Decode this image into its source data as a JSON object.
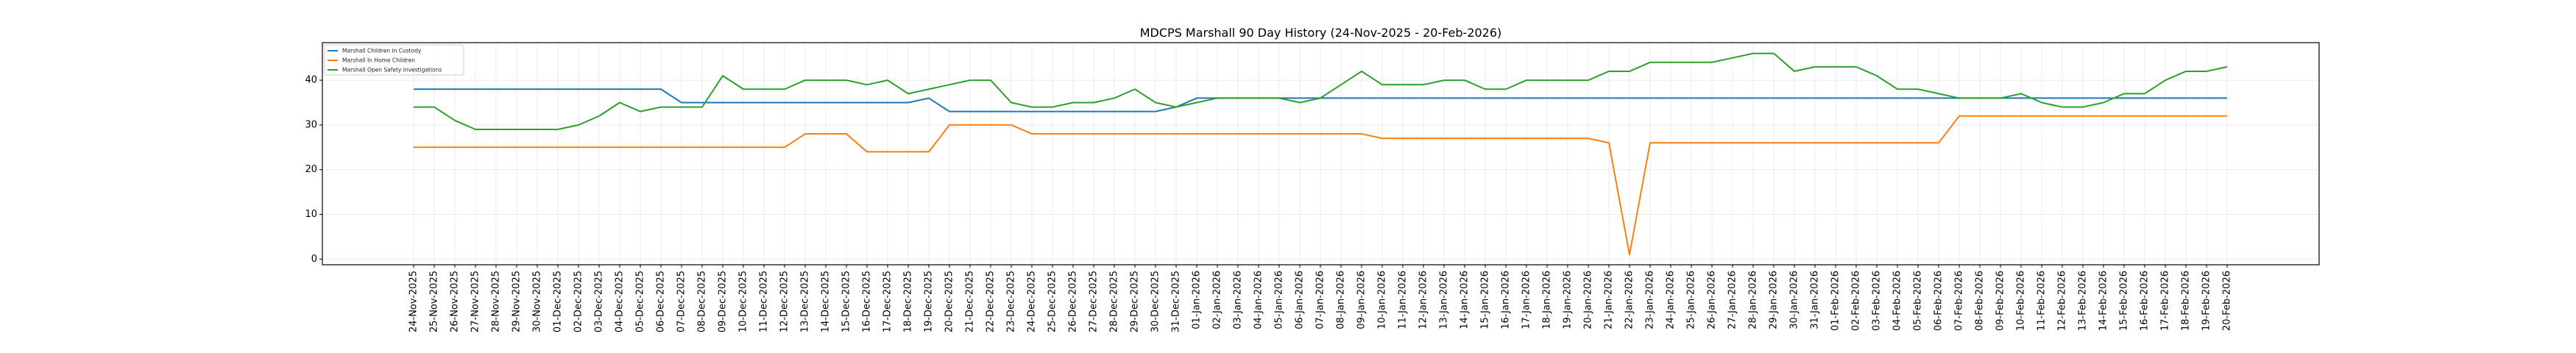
{
  "chart_data": {
    "type": "line",
    "title": "MDCPS Marshall 90 Day History (24-Nov-2025 - 20-Feb-2026)",
    "xlabel": "",
    "ylabel": "",
    "ylim": [
      -1,
      48
    ],
    "yticks": [
      0,
      10,
      20,
      30,
      40
    ],
    "grid": true,
    "legend_position": "top-left",
    "x": [
      "24-Nov-2025",
      "25-Nov-2025",
      "26-Nov-2025",
      "27-Nov-2025",
      "28-Nov-2025",
      "29-Nov-2025",
      "30-Nov-2025",
      "01-Dec-2025",
      "02-Dec-2025",
      "03-Dec-2025",
      "04-Dec-2025",
      "05-Dec-2025",
      "06-Dec-2025",
      "07-Dec-2025",
      "08-Dec-2025",
      "09-Dec-2025",
      "10-Dec-2025",
      "11-Dec-2025",
      "12-Dec-2025",
      "13-Dec-2025",
      "14-Dec-2025",
      "15-Dec-2025",
      "16-Dec-2025",
      "17-Dec-2025",
      "18-Dec-2025",
      "19-Dec-2025",
      "20-Dec-2025",
      "21-Dec-2025",
      "22-Dec-2025",
      "23-Dec-2025",
      "24-Dec-2025",
      "25-Dec-2025",
      "26-Dec-2025",
      "27-Dec-2025",
      "28-Dec-2025",
      "29-Dec-2025",
      "30-Dec-2025",
      "31-Dec-2025",
      "01-Jan-2026",
      "02-Jan-2026",
      "03-Jan-2026",
      "04-Jan-2026",
      "05-Jan-2026",
      "06-Jan-2026",
      "07-Jan-2026",
      "08-Jan-2026",
      "09-Jan-2026",
      "10-Jan-2026",
      "11-Jan-2026",
      "12-Jan-2026",
      "13-Jan-2026",
      "14-Jan-2026",
      "15-Jan-2026",
      "16-Jan-2026",
      "17-Jan-2026",
      "18-Jan-2026",
      "19-Jan-2026",
      "20-Jan-2026",
      "21-Jan-2026",
      "22-Jan-2026",
      "23-Jan-2026",
      "24-Jan-2026",
      "25-Jan-2026",
      "26-Jan-2026",
      "27-Jan-2026",
      "28-Jan-2026",
      "29-Jan-2026",
      "30-Jan-2026",
      "31-Jan-2026",
      "01-Feb-2026",
      "02-Feb-2026",
      "03-Feb-2026",
      "04-Feb-2026",
      "05-Feb-2026",
      "06-Feb-2026",
      "07-Feb-2026",
      "08-Feb-2026",
      "09-Feb-2026",
      "10-Feb-2026",
      "11-Feb-2026",
      "12-Feb-2026",
      "13-Feb-2026",
      "14-Feb-2026",
      "15-Feb-2026",
      "16-Feb-2026",
      "17-Feb-2026",
      "18-Feb-2026",
      "19-Feb-2026",
      "20-Feb-2026"
    ],
    "series": [
      {
        "name": "Marshall Children in Custody",
        "color": "#1f77b4",
        "values": [
          38,
          38,
          38,
          38,
          38,
          38,
          38,
          38,
          38,
          38,
          38,
          38,
          38,
          35,
          35,
          35,
          35,
          35,
          35,
          35,
          35,
          35,
          35,
          35,
          35,
          36,
          33,
          33,
          33,
          33,
          33,
          33,
          33,
          33,
          33,
          33,
          33,
          34,
          36,
          36,
          36,
          36,
          36,
          36,
          36,
          36,
          36,
          36,
          36,
          36,
          36,
          36,
          36,
          36,
          36,
          36,
          36,
          36,
          36,
          36,
          36,
          36,
          36,
          36,
          36,
          36,
          36,
          36,
          36,
          36,
          36,
          36,
          36,
          36,
          36,
          36,
          36,
          36,
          36,
          36,
          36,
          36,
          36,
          36,
          36,
          36,
          36,
          36,
          36
        ]
      },
      {
        "name": "Marshall In Home Children",
        "color": "#ff7f0e",
        "values": [
          25,
          25,
          25,
          25,
          25,
          25,
          25,
          25,
          25,
          25,
          25,
          25,
          25,
          25,
          25,
          25,
          25,
          25,
          25,
          28,
          28,
          28,
          24,
          24,
          24,
          24,
          30,
          30,
          30,
          30,
          28,
          28,
          28,
          28,
          28,
          28,
          28,
          28,
          28,
          28,
          28,
          28,
          28,
          28,
          28,
          28,
          28,
          27,
          27,
          27,
          27,
          27,
          27,
          27,
          27,
          27,
          27,
          27,
          26,
          1,
          26,
          26,
          26,
          26,
          26,
          26,
          26,
          26,
          26,
          26,
          26,
          26,
          26,
          26,
          26,
          32,
          32,
          32,
          32,
          32,
          32,
          32,
          32,
          32,
          32,
          32,
          32,
          32,
          32
        ]
      },
      {
        "name": "Marshall Open Safety Investigations",
        "color": "#2ca02c",
        "values": [
          34,
          34,
          31,
          29,
          29,
          29,
          29,
          29,
          30,
          32,
          35,
          33,
          34,
          34,
          34,
          41,
          38,
          38,
          38,
          40,
          40,
          40,
          39,
          40,
          37,
          38,
          39,
          40,
          40,
          35,
          34,
          34,
          35,
          35,
          36,
          38,
          35,
          34,
          35,
          36,
          36,
          36,
          36,
          35,
          36,
          39,
          42,
          39,
          39,
          39,
          40,
          40,
          38,
          38,
          40,
          40,
          40,
          40,
          42,
          42,
          44,
          44,
          44,
          44,
          45,
          46,
          46,
          42,
          43,
          43,
          43,
          41,
          38,
          38,
          37,
          36,
          36,
          36,
          37,
          35,
          34,
          34,
          35,
          37,
          37,
          40,
          42,
          42,
          43
        ]
      }
    ]
  }
}
